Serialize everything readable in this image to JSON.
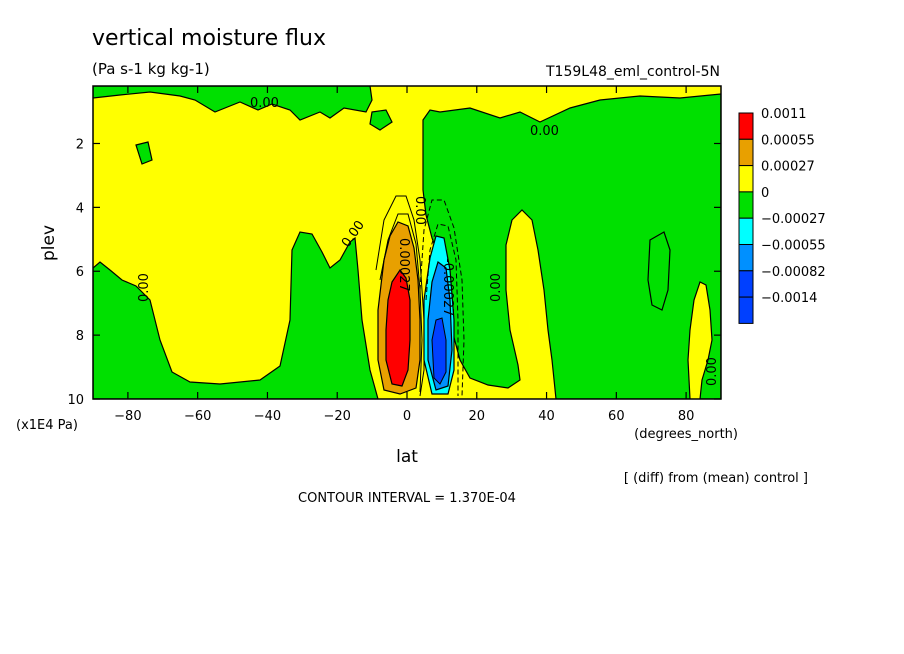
{
  "chart_data": {
    "type": "heatmap",
    "title": "vertical moisture flux",
    "units": "(Pa s-1 kg kg-1)",
    "experiment": "T159L48_eml_control-5N",
    "xlabel": "lat",
    "x_units": "(degrees_north)",
    "ylabel": "plev",
    "y_units": "(x1E4 Pa)",
    "xlim": [
      -90,
      90
    ],
    "ylim": [
      10,
      0.2
    ],
    "x_ticks": [
      "-80",
      "-60",
      "-40",
      "-20",
      "0",
      "20",
      "40",
      "60",
      "80"
    ],
    "y_ticks": [
      "2",
      "4",
      "6",
      "8",
      "10"
    ],
    "legend": {
      "placement": "right",
      "labels": [
        "0.0011",
        "0.00055",
        "0.00027",
        "0",
        "-0.00027",
        "-0.00055",
        "-0.00082",
        "-0.0014"
      ],
      "colors": [
        "#ff0000",
        "#e8a000",
        "#ffff00",
        "#00e000",
        "#00ffff",
        "#0090ff",
        "#0040ff",
        "#0040ff"
      ]
    },
    "contour_labels": [
      "0.00",
      "0.00",
      "0.00",
      "0.00",
      "0.00027",
      "0.00",
      "-0.00027",
      "0.00",
      "0.00"
    ],
    "note": "[ (diff) from (mean) control ]",
    "contour_interval": "CONTOUR INTERVAL = 1.370E-04"
  }
}
